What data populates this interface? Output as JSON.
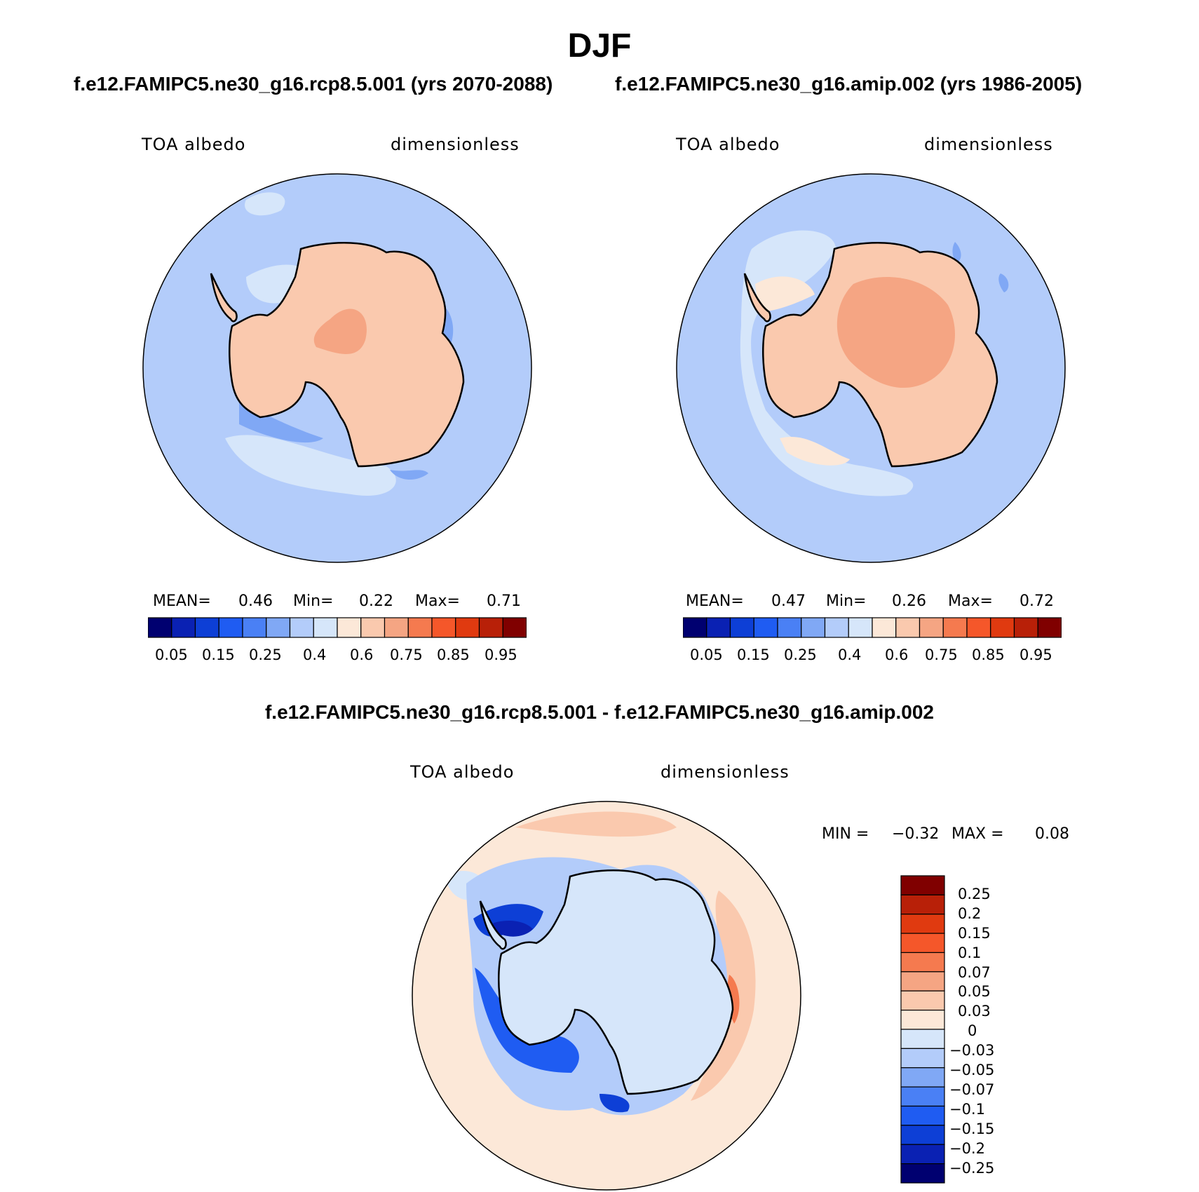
{
  "title": "DJF",
  "panels": [
    {
      "case_title": "f.e12.FAMIPC5.ne30_g16.rcp8.5.001 (yrs 2070-2088)",
      "variable": "TOA albedo",
      "units": "dimensionless",
      "stats": {
        "mean_label": "MEAN=",
        "mean": "0.46",
        "min_label": "Min=",
        "min": "0.22",
        "max_label": "Max=",
        "max": "0.71"
      },
      "colorbar_labels": [
        "0.05",
        "0.15",
        "0.25",
        "0.4",
        "0.6",
        "0.75",
        "0.85",
        "0.95"
      ]
    },
    {
      "case_title": "f.e12.FAMIPC5.ne30_g16.amip.002 (yrs 1986-2005)",
      "variable": "TOA albedo",
      "units": "dimensionless",
      "stats": {
        "mean_label": "MEAN=",
        "mean": "0.47",
        "min_label": "Min=",
        "min": "0.26",
        "max_label": "Max=",
        "max": "0.72"
      },
      "colorbar_labels": [
        "0.05",
        "0.15",
        "0.25",
        "0.4",
        "0.6",
        "0.75",
        "0.85",
        "0.95"
      ]
    }
  ],
  "diff": {
    "case_title": "f.e12.FAMIPC5.ne30_g16.rcp8.5.001 - f.e12.FAMIPC5.ne30_g16.amip.002",
    "variable": "TOA albedo",
    "units": "dimensionless",
    "stats": {
      "min_label": "MIN =",
      "min": "−0.32",
      "max_label": "MAX =",
      "max": "0.08"
    },
    "colorbar_labels": [
      "0.25",
      "0.2",
      "0.15",
      "0.1",
      "0.07",
      "0.05",
      "0.03",
      "0",
      "−0.03",
      "−0.05",
      "−0.07",
      "−0.1",
      "−0.15",
      "−0.2",
      "−0.25"
    ]
  },
  "colors": {
    "abs_palette": [
      "#000070",
      "#0a21b3",
      "#0d3fd6",
      "#1f5cf2",
      "#4a80f5",
      "#80a8f5",
      "#b3ccfa",
      "#d6e6fa",
      "#fce8d8",
      "#fac9ae",
      "#f5a583",
      "#f57a4f",
      "#f5572a",
      "#e03a10",
      "#b82008",
      "#800000"
    ],
    "diff_palette": [
      "#800000",
      "#b82008",
      "#e03a10",
      "#f5572a",
      "#f57a4f",
      "#f5a583",
      "#fac9ae",
      "#fce8d8",
      "#d6e6fa",
      "#b3ccfa",
      "#80a8f5",
      "#4a80f5",
      "#1f5cf2",
      "#0d3fd6",
      "#0a21b3",
      "#000070"
    ]
  }
}
